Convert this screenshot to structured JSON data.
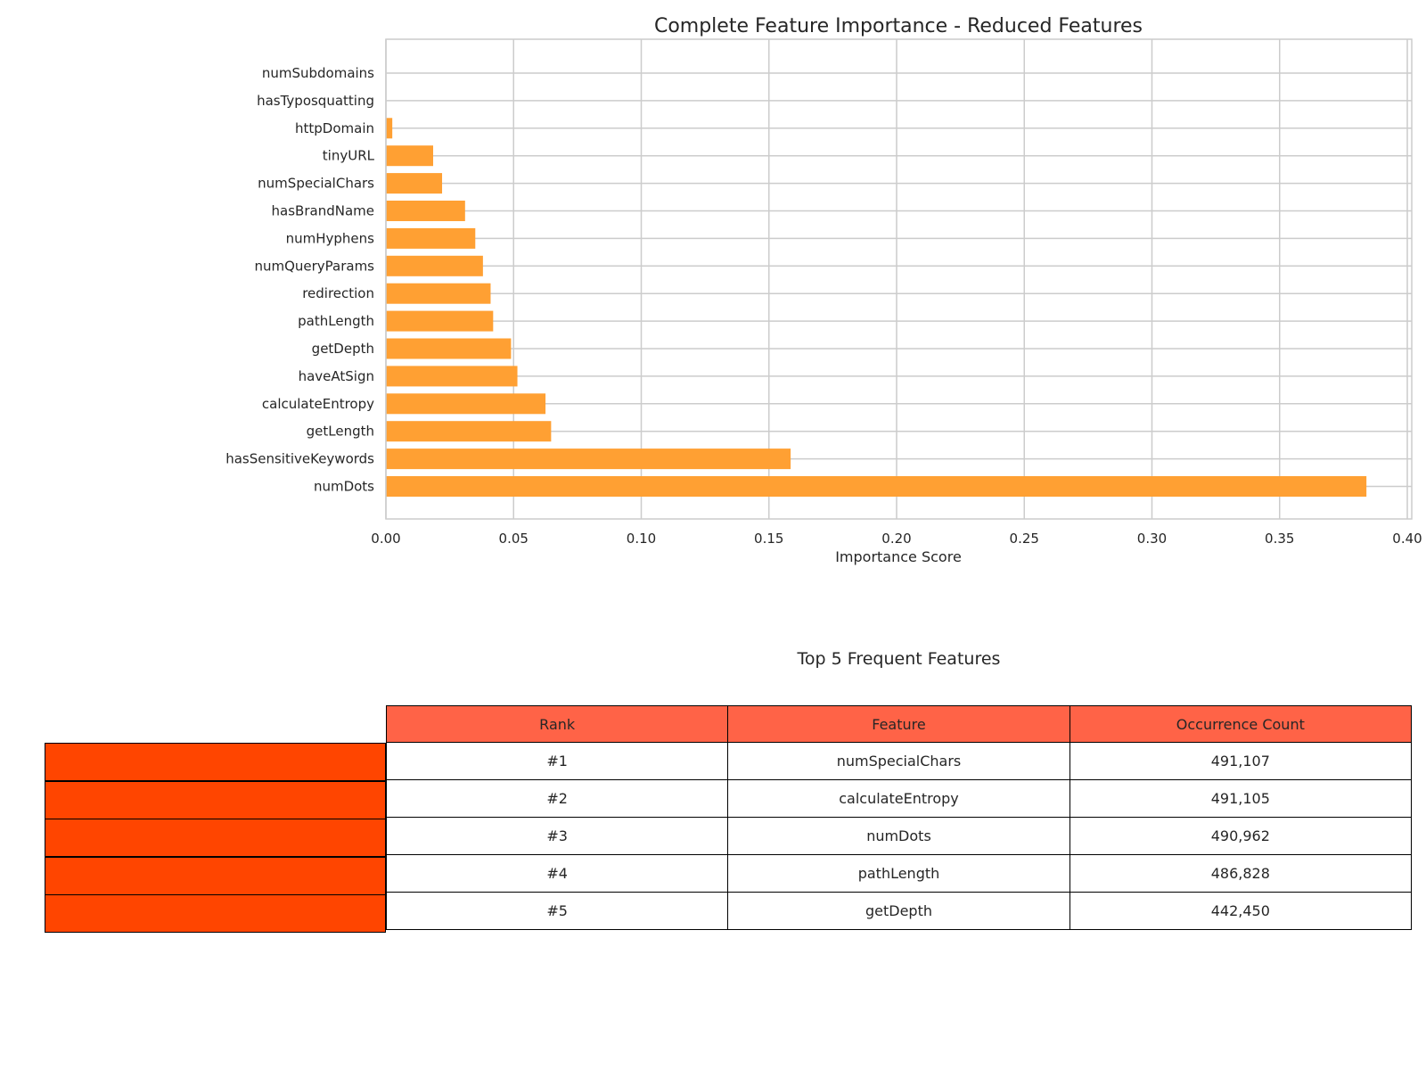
{
  "chart_data": {
    "type": "bar",
    "orientation": "horizontal",
    "title": "Complete Feature Importance - Reduced Features",
    "xlabel": "Importance Score",
    "ylabel": "",
    "xlim": [
      0,
      0.4
    ],
    "xticks": [
      "0.00",
      "0.05",
      "0.10",
      "0.15",
      "0.20",
      "0.25",
      "0.30",
      "0.35",
      "0.40"
    ],
    "grid": true,
    "bar_color": "#ffa033",
    "categories": [
      "numSubdomains",
      "hasTyposquatting",
      "httpDomain",
      "tinyURL",
      "numSpecialChars",
      "hasBrandName",
      "numHyphens",
      "numQueryParams",
      "redirection",
      "pathLength",
      "getDepth",
      "haveAtSign",
      "calculateEntropy",
      "getLength",
      "hasSensitiveKeywords",
      "numDots"
    ],
    "values": [
      0.0,
      0.0,
      0.0025,
      0.0185,
      0.022,
      0.031,
      0.035,
      0.038,
      0.041,
      0.042,
      0.049,
      0.0515,
      0.0625,
      0.0647,
      0.1585,
      0.384
    ]
  },
  "table": {
    "title": "Top 5 Frequent Features",
    "header_color": "#ff6347",
    "row_header_color": "#ff4500",
    "columns": [
      "Rank",
      "Feature",
      "Occurrence Count"
    ],
    "rows": [
      [
        "#1",
        "numSpecialChars",
        "491,107"
      ],
      [
        "#2",
        "calculateEntropy",
        "491,105"
      ],
      [
        "#3",
        "numDots",
        "490,962"
      ],
      [
        "#4",
        "pathLength",
        "486,828"
      ],
      [
        "#5",
        "getDepth",
        "442,450"
      ]
    ]
  }
}
